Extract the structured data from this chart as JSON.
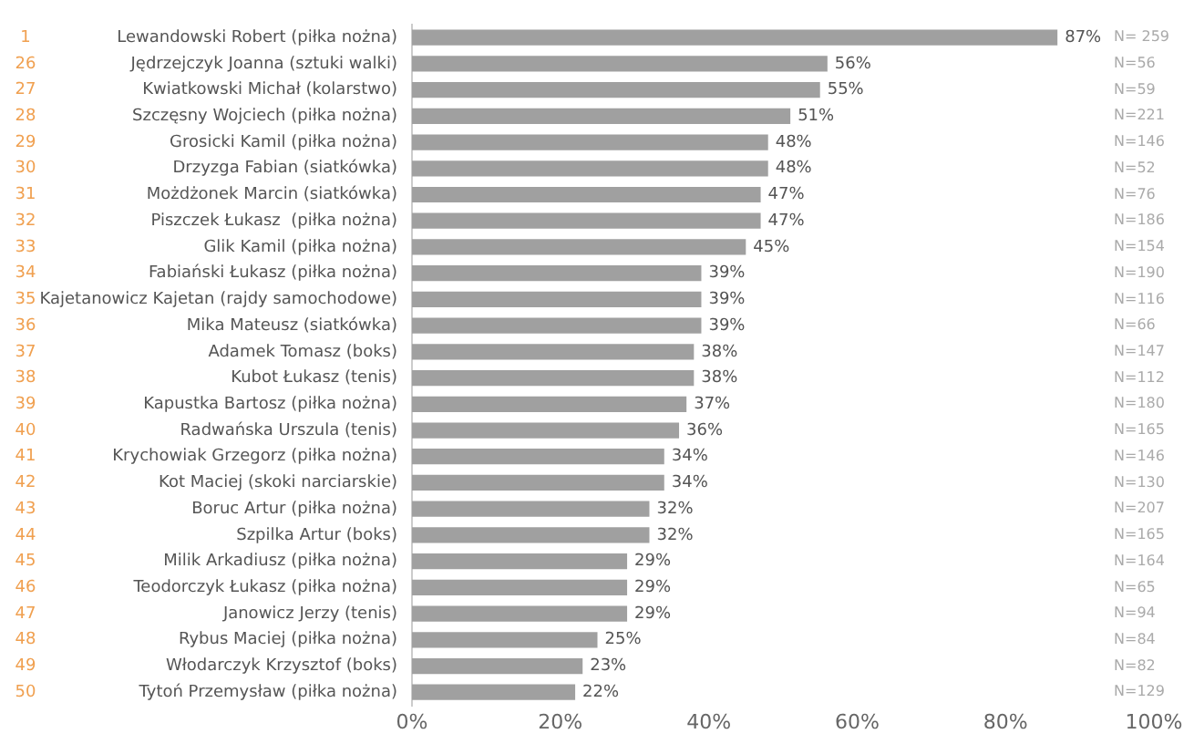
{
  "chart_data": {
    "type": "bar",
    "orientation": "horizontal",
    "categories": [
      "Lewandowski Robert (piłka nożna)",
      "Jędrzejczyk Joanna (sztuki walki)",
      "Kwiatkowski Michał (kolarstwo)",
      "Szczęsny Wojciech (piłka nożna)",
      "Grosicki Kamil (piłka nożna)",
      "Drzyzga Fabian (siatkówka)",
      "Możdżonek Marcin (siatkówka)",
      "Piszczek Łukasz  (piłka nożna)",
      "Glik Kamil (piłka nożna)",
      "Fabiański Łukasz (piłka nożna)",
      "Kajetanowicz Kajetan (rajdy samochodowe)",
      "Mika Mateusz (siatkówka)",
      "Adamek Tomasz (boks)",
      "Kubot Łukasz (tenis)",
      "Kapustka Bartosz (piłka nożna)",
      "Radwańska Urszula (tenis)",
      "Krychowiak Grzegorz (piłka nożna)",
      "Kot Maciej (skoki narciarskie)",
      "Boruc Artur (piłka nożna)",
      "Szpilka Artur (boks)",
      "Milik Arkadiusz (piłka nożna)",
      "Teodorczyk Łukasz (piłka nożna)",
      "Janowicz Jerzy (tenis)",
      "Rybus Maciej (piłka nożna)",
      "Włodarczyk Krzysztof (boks)",
      "Tytoń Przemysław (piłka nożna)"
    ],
    "values": [
      87,
      56,
      55,
      51,
      48,
      48,
      47,
      47,
      45,
      39,
      39,
      39,
      38,
      38,
      37,
      36,
      34,
      34,
      32,
      32,
      29,
      29,
      29,
      25,
      23,
      22
    ],
    "value_labels": [
      "87%",
      "56%",
      "55%",
      "51%",
      "48%",
      "48%",
      "47%",
      "47%",
      "45%",
      "39%",
      "39%",
      "39%",
      "38%",
      "38%",
      "37%",
      "36%",
      "34%",
      "34%",
      "32%",
      "32%",
      "29%",
      "29%",
      "29%",
      "25%",
      "23%",
      "22%"
    ],
    "color": "#a0a0a0",
    "xlim": [
      0,
      100
    ],
    "xticks": [
      {
        "value": 0,
        "label": "0%"
      },
      {
        "value": 20,
        "label": "20%"
      },
      {
        "value": 40,
        "label": "40%"
      },
      {
        "value": 60,
        "label": "60%"
      },
      {
        "value": 80,
        "label": "80%"
      },
      {
        "value": 100,
        "label": "100%"
      }
    ],
    "grid": false,
    "legend": false,
    "annotations": [
      "1",
      "N= 259",
      "26",
      "N=56",
      "27",
      "N=59",
      "28",
      "N=221",
      "29",
      "N=146",
      "30",
      "N=52",
      "31",
      "N=76",
      "32",
      "N=186",
      "33",
      "N=154",
      "34",
      "N=190",
      "35",
      "N=116",
      "36",
      "N=66",
      "37",
      "N=147",
      "38",
      "N=112",
      "39",
      "N=180",
      "40",
      "N=165",
      "41",
      "N=146",
      "42",
      "N=130",
      "43",
      "N=207",
      "44",
      "N=165",
      "45",
      "N=164",
      "46",
      "N=65",
      "47",
      "N=94",
      "48",
      "N=84",
      "49",
      "N=82",
      "50",
      "N=129"
    ]
  }
}
